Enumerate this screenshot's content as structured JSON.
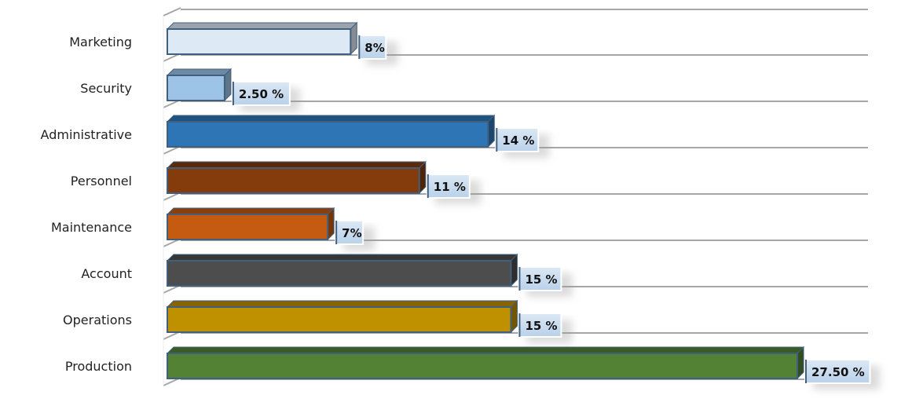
{
  "chart_data": {
    "type": "bar",
    "orientation": "horizontal",
    "title": "",
    "xlabel": "",
    "ylabel": "",
    "xlim": [
      0,
      30
    ],
    "grid": true,
    "categories": [
      "Marketing",
      "Security",
      "Administrative",
      "Personnel",
      "Maintenance",
      "Account",
      "Operations",
      "Production"
    ],
    "values": [
      8,
      2.5,
      14,
      11,
      7,
      15,
      15,
      27.5
    ],
    "data_labels": [
      "8%",
      "2.50 %",
      "14 %",
      "11 %",
      "7%",
      "15 %",
      "15 %",
      "27.50 %"
    ],
    "colors": [
      "#dde9f5",
      "#9dc3e6",
      "#2e75b6",
      "#843c0c",
      "#c55a11",
      "#4d4d4d",
      "#bf9000",
      "#548235"
    ],
    "unit": "%"
  }
}
